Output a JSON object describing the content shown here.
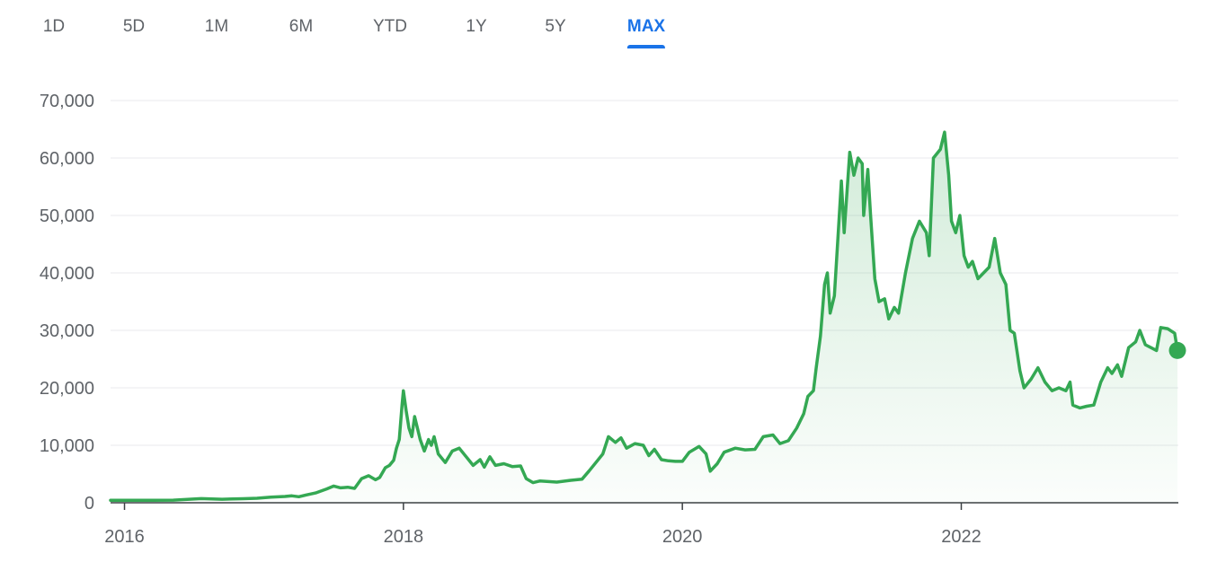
{
  "range_tabs": {
    "items": [
      "1D",
      "5D",
      "1M",
      "6M",
      "YTD",
      "1Y",
      "5Y",
      "MAX"
    ],
    "active": "MAX"
  },
  "colors": {
    "line": "#34a853",
    "fill": "#34a853",
    "active_tab": "#1a73e8",
    "grid": "#e8eaed",
    "axis": "#3c4043"
  },
  "chart_data": {
    "type": "area",
    "ylim": [
      0,
      70000
    ],
    "yticks": [
      0,
      10000,
      20000,
      30000,
      40000,
      50000,
      60000,
      70000
    ],
    "ytick_labels": [
      "0",
      "10,000",
      "20,000",
      "30,000",
      "40,000",
      "50,000",
      "60,000",
      "70,000"
    ],
    "xlim": [
      2015.9,
      2023.55
    ],
    "xticks": [
      2016,
      2018,
      2020,
      2022
    ],
    "xtick_labels": [
      "2016",
      "2018",
      "2020",
      "2022"
    ],
    "grid": true,
    "series": [
      {
        "points": [
          [
            2015.9,
            430
          ],
          [
            2016.0,
            430
          ],
          [
            2016.2,
            420
          ],
          [
            2016.35,
            450
          ],
          [
            2016.45,
            580
          ],
          [
            2016.55,
            720
          ],
          [
            2016.7,
            610
          ],
          [
            2016.85,
            700
          ],
          [
            2016.95,
            780
          ],
          [
            2017.05,
            970
          ],
          [
            2017.15,
            1100
          ],
          [
            2017.2,
            1200
          ],
          [
            2017.25,
            1050
          ],
          [
            2017.3,
            1350
          ],
          [
            2017.37,
            1700
          ],
          [
            2017.45,
            2400
          ],
          [
            2017.5,
            2900
          ],
          [
            2017.55,
            2600
          ],
          [
            2017.6,
            2700
          ],
          [
            2017.65,
            2500
          ],
          [
            2017.7,
            4200
          ],
          [
            2017.75,
            4700
          ],
          [
            2017.8,
            4000
          ],
          [
            2017.83,
            4400
          ],
          [
            2017.87,
            6100
          ],
          [
            2017.9,
            6500
          ],
          [
            2017.93,
            7400
          ],
          [
            2017.95,
            9500
          ],
          [
            2017.97,
            11000
          ],
          [
            2017.99,
            17000
          ],
          [
            2018.0,
            19500
          ],
          [
            2018.02,
            16000
          ],
          [
            2018.04,
            13000
          ],
          [
            2018.06,
            11500
          ],
          [
            2018.08,
            15000
          ],
          [
            2018.1,
            13000
          ],
          [
            2018.12,
            11000
          ],
          [
            2018.15,
            9000
          ],
          [
            2018.18,
            11000
          ],
          [
            2018.2,
            10000
          ],
          [
            2018.22,
            11500
          ],
          [
            2018.25,
            8500
          ],
          [
            2018.3,
            7000
          ],
          [
            2018.35,
            9000
          ],
          [
            2018.4,
            9500
          ],
          [
            2018.45,
            8000
          ],
          [
            2018.5,
            6500
          ],
          [
            2018.55,
            7500
          ],
          [
            2018.58,
            6200
          ],
          [
            2018.62,
            8000
          ],
          [
            2018.66,
            6500
          ],
          [
            2018.72,
            6800
          ],
          [
            2018.78,
            6300
          ],
          [
            2018.84,
            6400
          ],
          [
            2018.88,
            4200
          ],
          [
            2018.93,
            3500
          ],
          [
            2018.98,
            3800
          ],
          [
            2019.1,
            3600
          ],
          [
            2019.2,
            3900
          ],
          [
            2019.28,
            4100
          ],
          [
            2019.33,
            5500
          ],
          [
            2019.38,
            7000
          ],
          [
            2019.43,
            8500
          ],
          [
            2019.47,
            11500
          ],
          [
            2019.52,
            10500
          ],
          [
            2019.56,
            11300
          ],
          [
            2019.6,
            9500
          ],
          [
            2019.66,
            10300
          ],
          [
            2019.72,
            10000
          ],
          [
            2019.76,
            8200
          ],
          [
            2019.8,
            9300
          ],
          [
            2019.85,
            7500
          ],
          [
            2019.9,
            7300
          ],
          [
            2019.95,
            7200
          ],
          [
            2020.0,
            7200
          ],
          [
            2020.05,
            8800
          ],
          [
            2020.12,
            9800
          ],
          [
            2020.17,
            8500
          ],
          [
            2020.2,
            5500
          ],
          [
            2020.25,
            6800
          ],
          [
            2020.3,
            8800
          ],
          [
            2020.38,
            9500
          ],
          [
            2020.45,
            9200
          ],
          [
            2020.52,
            9300
          ],
          [
            2020.58,
            11500
          ],
          [
            2020.65,
            11800
          ],
          [
            2020.7,
            10300
          ],
          [
            2020.76,
            10800
          ],
          [
            2020.82,
            13000
          ],
          [
            2020.87,
            15500
          ],
          [
            2020.9,
            18500
          ],
          [
            2020.94,
            19500
          ],
          [
            2020.96,
            23500
          ],
          [
            2020.99,
            29000
          ],
          [
            2021.02,
            38000
          ],
          [
            2021.04,
            40000
          ],
          [
            2021.06,
            33000
          ],
          [
            2021.09,
            36000
          ],
          [
            2021.12,
            48000
          ],
          [
            2021.14,
            56000
          ],
          [
            2021.16,
            47000
          ],
          [
            2021.2,
            61000
          ],
          [
            2021.23,
            57000
          ],
          [
            2021.26,
            60000
          ],
          [
            2021.29,
            59000
          ],
          [
            2021.3,
            50000
          ],
          [
            2021.33,
            58000
          ],
          [
            2021.35,
            50000
          ],
          [
            2021.38,
            39000
          ],
          [
            2021.41,
            35000
          ],
          [
            2021.45,
            35500
          ],
          [
            2021.48,
            32000
          ],
          [
            2021.52,
            34000
          ],
          [
            2021.55,
            33000
          ],
          [
            2021.6,
            40000
          ],
          [
            2021.65,
            46000
          ],
          [
            2021.7,
            49000
          ],
          [
            2021.75,
            47000
          ],
          [
            2021.77,
            43000
          ],
          [
            2021.8,
            60000
          ],
          [
            2021.85,
            61500
          ],
          [
            2021.88,
            64500
          ],
          [
            2021.91,
            57000
          ],
          [
            2021.93,
            49000
          ],
          [
            2021.96,
            47000
          ],
          [
            2021.99,
            50000
          ],
          [
            2022.02,
            43000
          ],
          [
            2022.05,
            41000
          ],
          [
            2022.08,
            42000
          ],
          [
            2022.12,
            39000
          ],
          [
            2022.2,
            41000
          ],
          [
            2022.24,
            46000
          ],
          [
            2022.28,
            40000
          ],
          [
            2022.32,
            38000
          ],
          [
            2022.35,
            30000
          ],
          [
            2022.38,
            29500
          ],
          [
            2022.42,
            23000
          ],
          [
            2022.45,
            20000
          ],
          [
            2022.5,
            21500
          ],
          [
            2022.55,
            23500
          ],
          [
            2022.6,
            21000
          ],
          [
            2022.65,
            19500
          ],
          [
            2022.7,
            20000
          ],
          [
            2022.75,
            19500
          ],
          [
            2022.78,
            21000
          ],
          [
            2022.8,
            17000
          ],
          [
            2022.85,
            16500
          ],
          [
            2022.9,
            16800
          ],
          [
            2022.95,
            17000
          ],
          [
            2023.0,
            21000
          ],
          [
            2023.05,
            23500
          ],
          [
            2023.08,
            22500
          ],
          [
            2023.12,
            24000
          ],
          [
            2023.15,
            22000
          ],
          [
            2023.2,
            27000
          ],
          [
            2023.25,
            28000
          ],
          [
            2023.28,
            30000
          ],
          [
            2023.32,
            27500
          ],
          [
            2023.36,
            27000
          ],
          [
            2023.4,
            26500
          ],
          [
            2023.43,
            30500
          ],
          [
            2023.48,
            30300
          ],
          [
            2023.53,
            29500
          ],
          [
            2023.55,
            26500
          ]
        ]
      }
    ],
    "last_point": [
      2023.55,
      26500
    ]
  }
}
